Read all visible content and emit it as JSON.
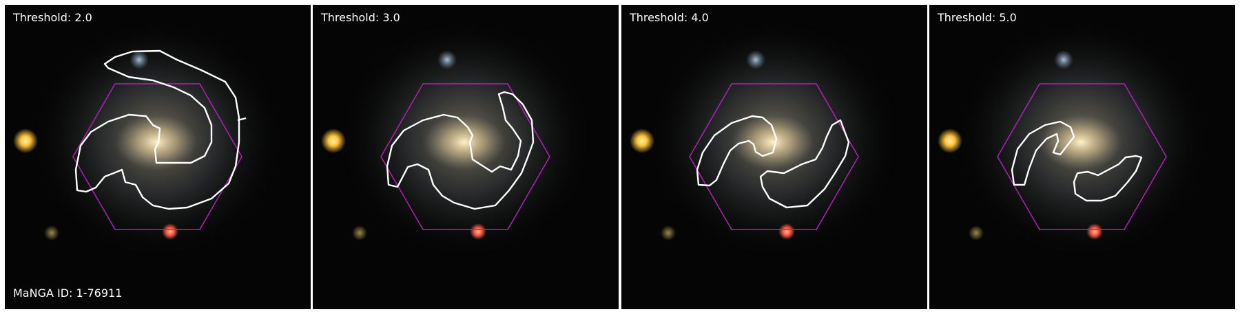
{
  "panels": [
    {
      "threshold_label": "Threshold: 2.0"
    },
    {
      "threshold_label": "Threshold: 3.0"
    },
    {
      "threshold_label": "Threshold: 4.0"
    },
    {
      "threshold_label": "Threshold: 5.0"
    }
  ],
  "manga_id_label": "MaNGA ID: 1-76911",
  "colors": {
    "background": "#050505",
    "hexagon": "#b021b8",
    "contour": "#ffffff",
    "text": "#ffffff",
    "star_yellow": "#ffc23a",
    "star_red": "#ff5a40",
    "galaxy_core": "#efd59a",
    "galaxy_arms": "#a9b4b7"
  }
}
